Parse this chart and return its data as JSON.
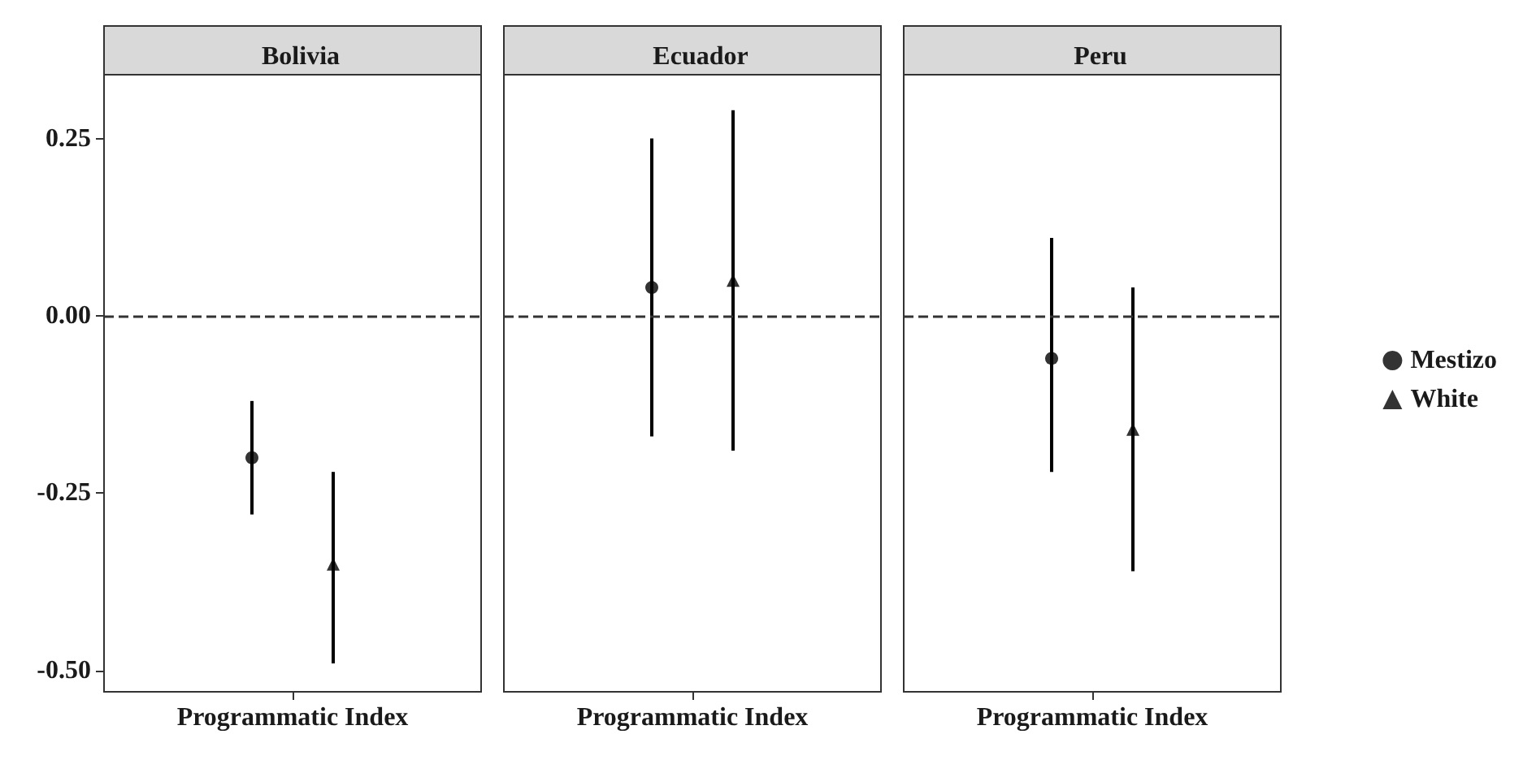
{
  "chart_data": [
    {
      "type": "scatter",
      "title": "Bolivia",
      "categories": [
        "Programmatic Index"
      ],
      "ylim": [
        -0.53,
        0.34
      ],
      "yticks": [
        {
          "value": -0.5,
          "label": "-0.50"
        },
        {
          "value": -0.25,
          "label": "-0.25"
        },
        {
          "value": 0,
          "label": "0.00"
        },
        {
          "value": 0.25,
          "label": "0.25"
        }
      ],
      "ref_lines": [
        {
          "axis": "y",
          "value": 0,
          "line_style": "dashed",
          "color": "#333333"
        }
      ],
      "legend": false,
      "series": [
        {
          "color": "#000000",
          "marker": "circle",
          "values": [
            -0.2
          ],
          "errors": [
            [
              -0.28,
              -0.12
            ]
          ]
        },
        {
          "color": "#000000",
          "marker": "triangle",
          "values": [
            -0.35
          ],
          "errors": [
            [
              -0.49,
              -0.22
            ]
          ]
        }
      ]
    },
    {
      "type": "scatter",
      "title": "Ecuador",
      "categories": [
        "Programmatic Index"
      ],
      "ylim": [
        -0.53,
        0.34
      ],
      "tick_labels": "x",
      "ref_lines": [
        {
          "axis": "y",
          "value": 0,
          "line_style": "dashed",
          "color": "#333333"
        }
      ],
      "legend": false,
      "series": [
        {
          "color": "#000000",
          "marker": "circle",
          "values": [
            0.04
          ],
          "errors": [
            [
              -0.17,
              0.25
            ]
          ]
        },
        {
          "color": "#000000",
          "marker": "triangle",
          "values": [
            0.05
          ],
          "errors": [
            [
              -0.19,
              0.29
            ]
          ]
        }
      ]
    },
    {
      "type": "scatter",
      "title": "Peru",
      "categories": [
        "Programmatic Index"
      ],
      "ylim": [
        -0.53,
        0.34
      ],
      "tick_labels": "x",
      "ref_lines": [
        {
          "axis": "y",
          "value": 0,
          "line_style": "dashed",
          "color": "#333333"
        }
      ],
      "legend": "right",
      "series": [
        {
          "name": "Mestizo",
          "color": "#000000",
          "marker": "circle",
          "values": [
            -0.06
          ],
          "errors": [
            [
              -0.22,
              0.11
            ]
          ]
        },
        {
          "name": "White",
          "color": "#000000",
          "marker": "triangle",
          "values": [
            -0.16
          ],
          "errors": [
            [
              -0.36,
              0.04
            ]
          ]
        }
      ]
    }
  ]
}
